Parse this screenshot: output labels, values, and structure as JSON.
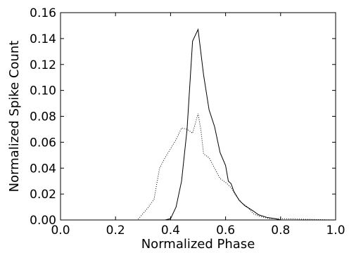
{
  "chart_data": {
    "type": "line",
    "title": "",
    "xlabel": "Normalized Phase",
    "ylabel": "Normalized Spike Count",
    "xlim": [
      0.0,
      1.0
    ],
    "ylim": [
      0.0,
      0.16
    ],
    "xticks": [
      "0.0",
      "0.2",
      "0.4",
      "0.6",
      "0.8",
      "1.0"
    ],
    "yticks": [
      "0.00",
      "0.02",
      "0.04",
      "0.06",
      "0.08",
      "0.10",
      "0.12",
      "0.14",
      "0.16"
    ],
    "grid": false,
    "series": [
      {
        "style": "solid",
        "color": "#000000",
        "x": [
          0.0,
          0.38,
          0.4,
          0.42,
          0.44,
          0.46,
          0.48,
          0.5,
          0.52,
          0.54,
          0.56,
          0.58,
          0.6,
          0.61,
          0.62,
          0.63,
          0.65,
          0.67,
          0.7,
          0.72,
          0.75,
          0.78,
          0.8,
          1.0
        ],
        "y": [
          0.0,
          0.0,
          0.001,
          0.01,
          0.03,
          0.07,
          0.138,
          0.147,
          0.112,
          0.085,
          0.072,
          0.052,
          0.042,
          0.03,
          0.028,
          0.022,
          0.015,
          0.011,
          0.007,
          0.004,
          0.002,
          0.001,
          0.0,
          0.0
        ]
      },
      {
        "style": "dotted",
        "color": "#000000",
        "x": [
          0.0,
          0.28,
          0.3,
          0.32,
          0.34,
          0.36,
          0.38,
          0.4,
          0.42,
          0.44,
          0.46,
          0.48,
          0.5,
          0.51,
          0.52,
          0.54,
          0.56,
          0.58,
          0.6,
          0.62,
          0.64,
          0.66,
          0.68,
          0.7,
          0.72,
          0.74,
          0.76,
          0.8,
          1.0
        ],
        "y": [
          0.0,
          0.0,
          0.005,
          0.01,
          0.016,
          0.04,
          0.048,
          0.055,
          0.062,
          0.071,
          0.07,
          0.067,
          0.082,
          0.07,
          0.051,
          0.048,
          0.04,
          0.032,
          0.029,
          0.025,
          0.018,
          0.013,
          0.01,
          0.005,
          0.003,
          0.002,
          0.001,
          0.001,
          0.0
        ]
      }
    ]
  }
}
